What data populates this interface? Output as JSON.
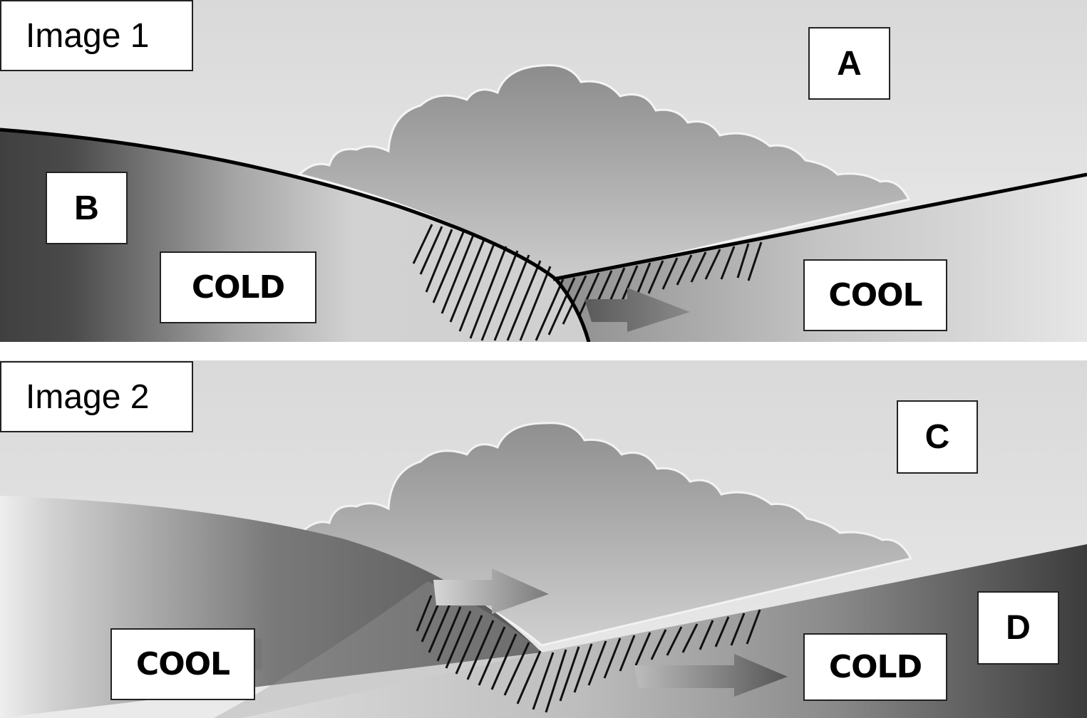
{
  "image1": {
    "title": "Image 1",
    "label_a": "A",
    "label_b": "B",
    "left_air": "COLD",
    "right_air": "COOL"
  },
  "image2": {
    "title": "Image 2",
    "label_c": "C",
    "label_d": "D",
    "left_air": "COOL",
    "right_air": "COLD"
  }
}
